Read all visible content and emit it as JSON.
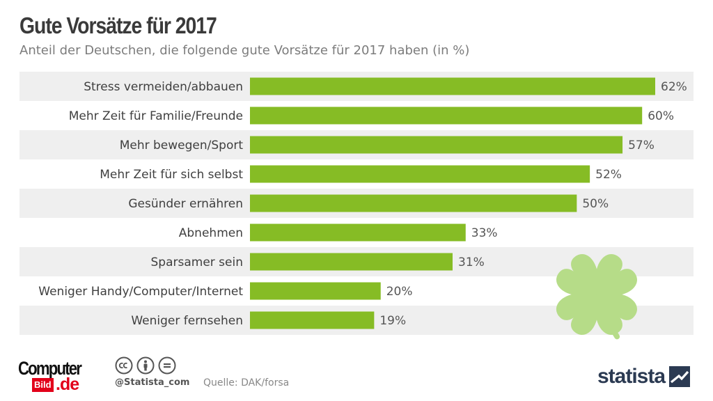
{
  "chart_data": {
    "type": "bar",
    "orientation": "horizontal",
    "title": "Gute Vorsätze für 2017",
    "subtitle": "Anteil der Deutschen, die folgende gute Vorsätze für 2017 haben (in %)",
    "categories": [
      "Stress vermeiden/abbauen",
      "Mehr Zeit für Familie/Freunde",
      "Mehr bewegen/Sport",
      "Mehr Zeit für sich selbst",
      "Gesünder ernähren",
      "Abnehmen",
      "Sparsamer sein",
      "Weniger Handy/Computer/Internet",
      "Weniger fernsehen"
    ],
    "values": [
      62,
      60,
      57,
      52,
      50,
      33,
      31,
      20,
      19
    ],
    "value_suffix": "%",
    "xlim": [
      0,
      70
    ],
    "colors": {
      "bar": "#86bc25",
      "row_band": "#efefef",
      "clover": "#b6dc88",
      "label": "#3f3f3f",
      "value_label": "#555555"
    }
  },
  "footer": {
    "brand_top": "Computer",
    "brand_bild": "Bild",
    "brand_de": ".de",
    "handle": "@Statista_com",
    "source": "Quelle: DAK/forsa",
    "statista": "statista",
    "license_icons": [
      "cc-icon",
      "attribution-icon",
      "no-derivatives-icon"
    ]
  }
}
